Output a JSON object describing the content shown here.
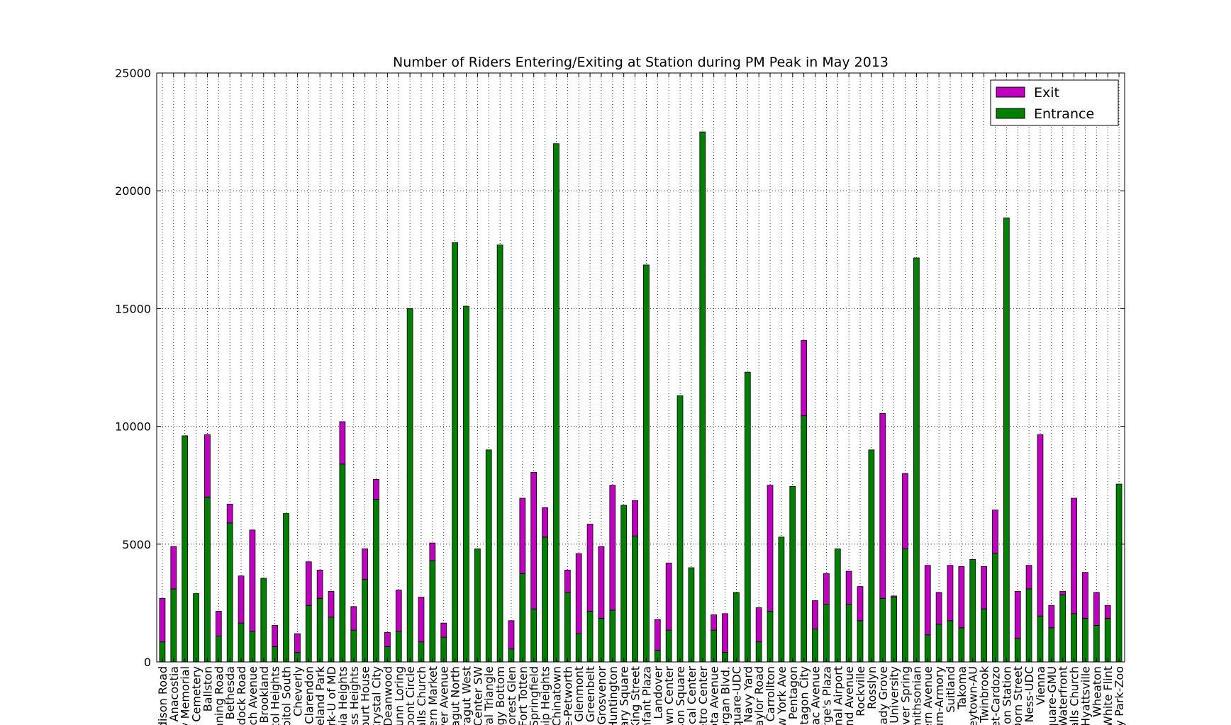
{
  "chart_data": {
    "type": "bar",
    "stacked": true,
    "title": "Number of Riders Entering/Exiting at Station during PM Peak in May 2013",
    "xlabel": "",
    "ylabel": "",
    "ylim": [
      0,
      25000
    ],
    "yticks": [
      0,
      5000,
      10000,
      15000,
      20000,
      25000
    ],
    "grid": true,
    "legend_position": "top-right",
    "categories": [
      "Addison Road",
      "Anacostia",
      "Arlington Cemetery",
      "Archives-Navy Memorial",
      "Ballston",
      "Benning Road",
      "Bethesda",
      "Braddock Road",
      "Branch Avenue",
      "Brookland",
      "Capitol Heights",
      "Capitol South",
      "Cheverly",
      "Clarendon",
      "Cleveland Park",
      "College Park-U of MD",
      "Columbia Heights",
      "Congress Heights",
      "Court House",
      "Crystal City",
      "Deanwood",
      "Dunn Loring",
      "Dupont Circle",
      "East Falls Church",
      "Eastern Market",
      "Eisenhower Avenue",
      "Farragut North",
      "Farragut West",
      "Federal Center SW",
      "Federal Triangle",
      "Foggy Bottom",
      "Forest Glen",
      "Fort Totten",
      "Franconia-Springfield",
      "Friendship Heights",
      "Gallery Place-Chinatown",
      "Georgia Ave-Petworth",
      "Glenmont",
      "Greenbelt",
      "Grosvenor",
      "Huntington",
      "Judiciary Square",
      "King Street",
      "L'Enfant Plaza",
      "Landover",
      "Largo Town Center",
      "McPherson Square",
      "Medical Center",
      "Metro Center",
      "Minnesota Avenue",
      "Morgan Blvd.",
      "Mt Vernon Square-UDC",
      "Navy Yard",
      "Naylor Road",
      "New Carrollton",
      "New York Ave",
      "Pentagon",
      "Pentagon City",
      "Potomac Avenue",
      "Prince George's Plaza",
      "Reagan National Airport",
      "Rhode Island Avenue",
      "Rockville",
      "Rosslyn",
      "Shady Grove",
      "Shaw-Howard University",
      "Silver Spring",
      "Smithsonian",
      "Southern Avenue",
      "Stadium-Armory",
      "Suitland",
      "Takoma",
      "Tenleytown-AU",
      "Twinbrook",
      "U Street-Cardozo",
      "Union Station",
      "Van Dorn Street",
      "Van Ness-UDC",
      "Vienna",
      "Virginia Square-GMU",
      "Waterfront",
      "West Falls Church",
      "West Hyattsville",
      "Wheaton",
      "White Flint",
      "Woodley Park-Zoo"
    ],
    "tick_labels": [
      "ddison Road",
      "Anacostia",
      "ry Memorial",
      "n Cemetery",
      "Ballston",
      "enning Road",
      "Bethesda",
      "ddock Road",
      "nch Avenue",
      "Brookland",
      "itol Heights",
      "apitol South",
      "Cheverly",
      "Clarendon",
      "veland Park",
      "ark-U of MD",
      "bia Heights",
      "ess Heights",
      "Court House",
      "Crystal City",
      "Deanwood",
      "Dunn Loring",
      "upont Circle",
      "Falls Church",
      "tern Market",
      "wer Avenue",
      "ragut North",
      "arragut West",
      "l Center SW",
      "ral Triangle",
      "ggy Bottom",
      "orest Glen",
      "Fort Totten",
      "-Springfield",
      "ship Heights",
      "e-Chinatown",
      "e-Petworth",
      "Glenmont",
      "Greenbelt",
      "Grosvenor",
      "Huntington",
      "iary Square",
      "King Street",
      "nfant Plaza",
      "Landover",
      "own Center",
      "rson Square",
      "dical Center",
      "etro Center",
      "sota Avenue",
      "organ Blvd.",
      "Square-UDC",
      "Navy Yard",
      "Naylor Road",
      "w Carrollton",
      "ew York Ave",
      "Pentagon",
      "ntagon City",
      "mac Avenue",
      "orge's Plaza",
      "onal Airport",
      "and Avenue",
      "Rockville",
      "Rosslyn",
      "hady Grove",
      "d University",
      "lver Spring",
      "mithsonian",
      "ern Avenue",
      "um-Armory",
      "Suitland",
      "Takoma",
      "leytown-AU",
      "Twinbrook",
      "eet-Cardozo",
      "nion Station",
      "Dorn Street",
      "n Ness-UDC",
      "Vienna",
      "quare-GMU",
      "Waterfront",
      "Falls Church",
      "Hyattsville",
      "Wheaton",
      "White Flint",
      "ey Park-Zoo"
    ],
    "series": [
      {
        "name": "Exit",
        "color": "#bf00bf",
        "values": [
          1850,
          1800,
          0,
          0,
          2650,
          1050,
          800,
          2000,
          4300,
          0,
          900,
          0,
          800,
          1850,
          1200,
          1100,
          1800,
          1000,
          1300,
          850,
          600,
          1750,
          0,
          1900,
          750,
          600,
          0,
          0,
          0,
          0,
          0,
          1200,
          3200,
          5800,
          1250,
          0,
          950,
          3400,
          3700,
          3050,
          5300,
          0,
          1500,
          0,
          1300,
          2850,
          0,
          0,
          0,
          650,
          1650,
          0,
          0,
          1450,
          5350,
          0,
          0,
          3200,
          1200,
          1300,
          0,
          1400,
          1450,
          0,
          7850,
          50,
          3200,
          0,
          2950,
          1350,
          2350,
          2600,
          0,
          1800,
          1850,
          0,
          2000,
          1000,
          7700,
          950,
          150,
          4900,
          1950,
          1400,
          550,
          0
        ]
      },
      {
        "name": "Entrance",
        "color": "#007f00",
        "values": [
          850,
          3100,
          9600,
          2900,
          7000,
          1100,
          5900,
          1650,
          1300,
          3550,
          650,
          6300,
          400,
          2400,
          2700,
          1900,
          8400,
          1350,
          3500,
          6900,
          650,
          1300,
          15000,
          850,
          4300,
          1050,
          17800,
          15100,
          4800,
          9000,
          17700,
          550,
          3750,
          2250,
          5300,
          22000,
          2950,
          1200,
          2150,
          1850,
          2200,
          6650,
          5350,
          16850,
          500,
          1350,
          11300,
          4000,
          22500,
          1350,
          400,
          2950,
          12300,
          850,
          2150,
          5300,
          7450,
          10450,
          1400,
          2450,
          4800,
          2450,
          1750,
          9000,
          2700,
          2750,
          4800,
          17150,
          1150,
          1600,
          1750,
          1450,
          4350,
          2250,
          4600,
          18850,
          1000,
          3100,
          1950,
          1450,
          2850,
          2050,
          1850,
          1550,
          1850,
          7550
        ]
      }
    ]
  }
}
